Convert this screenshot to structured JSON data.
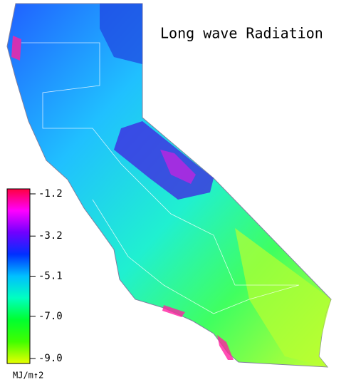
{
  "title": "Long wave Radiation",
  "colorbar": {
    "lim": [
      -9.0,
      -1.2
    ],
    "ticks": [
      -1.2,
      -3.2,
      -5.1,
      {
        "value": -7,
        "label": "-7.0"
      },
      {
        "value": -9,
        "label": "-9.0"
      }
    ],
    "colors": [
      "#ff0040",
      "#ff00ff",
      "#7000ff",
      "#0030ff",
      "#00c0ff",
      "#00ffc0",
      "#00ff30",
      "#40ff00",
      "#e8ff00"
    ],
    "unit_label": "MJ/m↑2"
  }
}
